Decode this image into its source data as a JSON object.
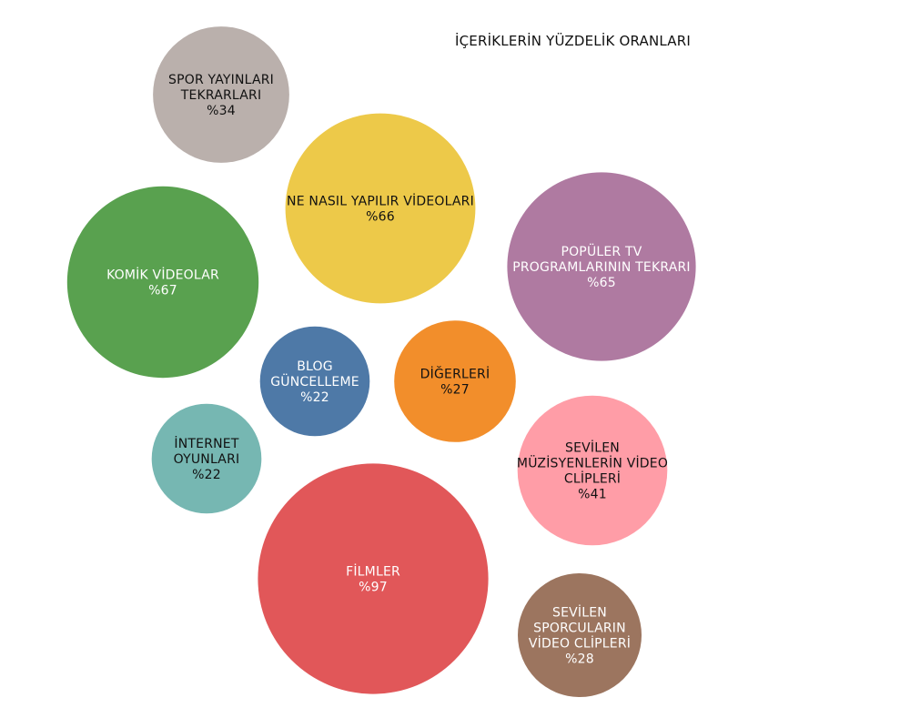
{
  "chart_data": {
    "type": "bubble",
    "title": "İÇERİKLERİN YÜZDELİK ORANLARI",
    "unit_prefix": "%",
    "bubbles": [
      {
        "lines": [
          "SPOR YAYINLARI",
          "TEKRARLARI"
        ],
        "value": 34,
        "color": "#bab0ac",
        "text_color": "#111111"
      },
      {
        "lines": [
          "NE NASIL YAPILIR VİDEOLARI"
        ],
        "value": 66,
        "color": "#edc949",
        "text_color": "#111111"
      },
      {
        "lines": [
          "POPÜLER TV",
          "PROGRAMLARININ TEKRARI"
        ],
        "value": 65,
        "color": "#af7aa1",
        "text_color": "#ffffff"
      },
      {
        "lines": [
          "KOMİK VİDEOLAR"
        ],
        "value": 67,
        "color": "#59a14f",
        "text_color": "#ffffff"
      },
      {
        "lines": [
          "BLOG",
          "GÜNCELLEME"
        ],
        "value": 22,
        "color": "#4e79a7",
        "text_color": "#ffffff"
      },
      {
        "lines": [
          "DİĞERLERİ"
        ],
        "value": 27,
        "color": "#f28e2b",
        "text_color": "#111111"
      },
      {
        "lines": [
          "İNTERNET",
          "OYUNLARI"
        ],
        "value": 22,
        "color": "#76b7b2",
        "text_color": "#111111"
      },
      {
        "lines": [
          "SEVİLEN",
          "MÜZİSYENLERİN VİDEO",
          "CLİPLERİ"
        ],
        "value": 41,
        "color": "#ff9da7",
        "text_color": "#111111"
      },
      {
        "lines": [
          "FİLMLER"
        ],
        "value": 97,
        "color": "#e15759",
        "text_color": "#ffffff"
      },
      {
        "lines": [
          "SEVİLEN",
          "SPORCULARIN",
          "VİDEO CLİPLERİ"
        ],
        "value": 28,
        "color": "#9c755f",
        "text_color": "#ffffff"
      }
    ]
  }
}
